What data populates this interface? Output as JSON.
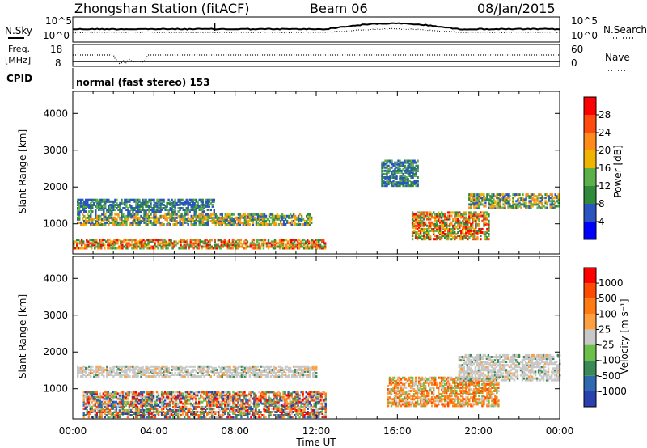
{
  "header": {
    "station": "Zhongshan Station (fitACF)",
    "beam": "Beam 06",
    "date": "08/Jan/2015"
  },
  "top_strip": {
    "left_label": "N.Sky",
    "right_label": "N.Search",
    "left_ticks": [
      "10^5",
      "10^0"
    ],
    "right_ticks": [
      "10^5",
      "10^0"
    ]
  },
  "freq_strip": {
    "left_label": "Freq.",
    "left_unit": "[MHz]",
    "right_label": "Nave",
    "left_ticks": [
      "18",
      "8"
    ],
    "right_ticks": [
      "60",
      "0"
    ]
  },
  "cpid": {
    "label": "CPID",
    "mode_text": "normal (fast stereo) 153"
  },
  "chart_data": [
    {
      "type": "heatmap",
      "panel": "power",
      "ylabel": "Slant Range [km]",
      "ylim": [
        180,
        4600
      ],
      "yticks": [
        1000,
        2000,
        3000,
        4000
      ],
      "colorbar_label": "Power [dB]",
      "colorbar_ticks": [
        4,
        8,
        12,
        16,
        20,
        24,
        28
      ],
      "colors": [
        "#0000ff",
        "#2a55c0",
        "#2f8a3a",
        "#5cb04a",
        "#f0b400",
        "#ff8c1a",
        "#ff4a10",
        "#ff0000"
      ],
      "regions": [
        {
          "t": [
            0.2,
            7.0
          ],
          "r": [
            1300,
            1650
          ],
          "level": "low"
        },
        {
          "t": [
            0.2,
            11.8
          ],
          "r": [
            950,
            1250
          ],
          "level": "mid"
        },
        {
          "t": [
            0.0,
            12.5
          ],
          "r": [
            300,
            550
          ],
          "level": "high"
        },
        {
          "t": [
            16.7,
            20.5
          ],
          "r": [
            550,
            1300
          ],
          "level": "high"
        },
        {
          "t": [
            19.5,
            24.0
          ],
          "r": [
            1400,
            1800
          ],
          "level": "mid"
        },
        {
          "t": [
            15.2,
            17.0
          ],
          "r": [
            2000,
            2700
          ],
          "level": "low"
        }
      ]
    },
    {
      "type": "heatmap",
      "panel": "velocity",
      "ylabel": "Slant Range [km]",
      "ylim": [
        180,
        4600
      ],
      "yticks": [
        1000,
        2000,
        3000,
        4000
      ],
      "colorbar_label": "Velocity [m s⁻¹]",
      "colorbar_ticks": [
        1000,
        500,
        100,
        25,
        -25,
        -100,
        -500,
        -1000
      ],
      "colors": [
        "#2a3fb0",
        "#2f6ab0",
        "#3a8a55",
        "#6cc04a",
        "#c8c8c8",
        "#ffa040",
        "#ff7a10",
        "#ff4a00",
        "#ff0000"
      ],
      "regions": [
        {
          "t": [
            0.2,
            12.0
          ],
          "r": [
            1300,
            1600
          ],
          "level": "zero"
        },
        {
          "t": [
            0.5,
            12.5
          ],
          "r": [
            200,
            900
          ],
          "level": "mixed"
        },
        {
          "t": [
            15.5,
            21.0
          ],
          "r": [
            500,
            1300
          ],
          "level": "away"
        },
        {
          "t": [
            19.0,
            24.0
          ],
          "r": [
            1200,
            1900
          ],
          "level": "zero"
        }
      ]
    }
  ],
  "x_axis": {
    "tick_labels": [
      "00:00",
      "04:00",
      "08:00",
      "12:00",
      "16:00",
      "20:00",
      "00:00"
    ],
    "label": "Time UT"
  }
}
